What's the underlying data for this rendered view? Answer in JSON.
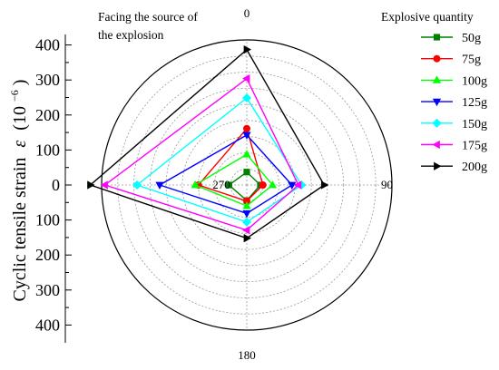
{
  "chart_data": {
    "type": "radar",
    "angle_labels": [
      "0",
      "90",
      "180",
      "270"
    ],
    "annotation": "Facing the source of the explosion",
    "annotation_lines": [
      "Facing the source of",
      "the explosion"
    ],
    "ylabel": "Cyclic tensile strain",
    "ylabel_symbol": "ε",
    "ylabel_unit_base": "(10",
    "ylabel_unit_exp": "−6",
    "ylabel_unit_close": ")",
    "r_ticks": [
      0,
      100,
      200,
      300,
      400
    ],
    "axis_tick_labels": [
      "400",
      "300",
      "200",
      "100",
      "0",
      "100",
      "200",
      "300",
      "400"
    ],
    "rlim": [
      0,
      450
    ],
    "grid": true,
    "legend_title": "Explosive quantity",
    "legend_position": "right",
    "series": [
      {
        "name": "50g",
        "color": "#008000",
        "marker": "square",
        "values": [
          40,
          42,
          48,
          55
        ]
      },
      {
        "name": "75g",
        "color": "#ff0000",
        "marker": "circle",
        "values": [
          175,
          50,
          50,
          150
        ]
      },
      {
        "name": "100g",
        "color": "#00ff00",
        "marker": "triangle-up",
        "values": [
          95,
          80,
          65,
          160
        ]
      },
      {
        "name": "125g",
        "color": "#0000ff",
        "marker": "triangle-down",
        "values": [
          155,
          140,
          88,
          270
        ]
      },
      {
        "name": "150g",
        "color": "#00ffff",
        "marker": "diamond",
        "values": [
          270,
          170,
          115,
          340
        ]
      },
      {
        "name": "175g",
        "color": "#ff00ff",
        "marker": "triangle-left",
        "values": [
          330,
          160,
          140,
          440
        ]
      },
      {
        "name": "200g",
        "color": "#000000",
        "marker": "triangle-right",
        "values": [
          420,
          240,
          165,
          485
        ]
      }
    ]
  }
}
